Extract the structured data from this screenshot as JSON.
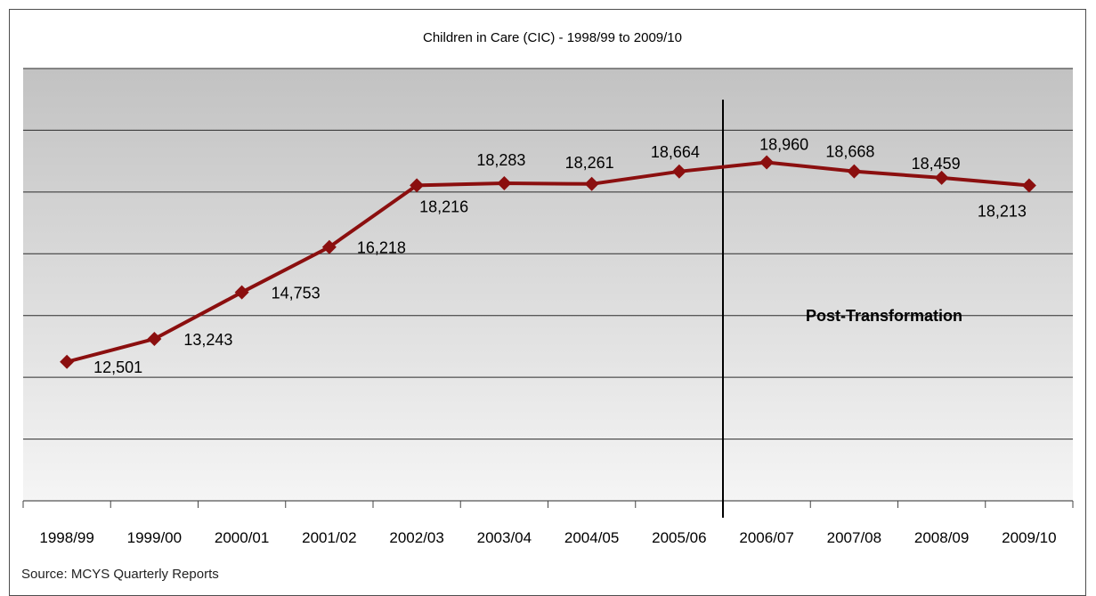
{
  "chart_data": {
    "type": "line",
    "title": "Children in Care (CIC) - 1998/99 to 2009/10",
    "categories": [
      "1998/99",
      "1999/00",
      "2000/01",
      "2001/02",
      "2002/03",
      "2003/04",
      "2004/05",
      "2005/06",
      "2006/07",
      "2007/08",
      "2008/09",
      "2009/10"
    ],
    "series": [
      {
        "values": [
          12501,
          13243,
          14753,
          16218,
          18216,
          18283,
          18261,
          18664,
          18960,
          18668,
          18459,
          18213
        ],
        "labels": [
          "12,501",
          "13,243",
          "14,753",
          "16,218",
          "18,216",
          "18,283",
          "18,261",
          "18,664",
          "18,960",
          "18,668",
          "18,459",
          "18,213"
        ],
        "color": "#8b0f0f"
      }
    ],
    "ylim": [
      8000,
      22000
    ],
    "grid": true,
    "annotation": {
      "text": "Post-Transformation",
      "at_category": "2006/07"
    },
    "colors": {
      "plot_top": "#c2c2c2",
      "plot_bottom": "#f5f5f5",
      "gridline": "#2b2b2b",
      "marker": "#8b0f0f"
    }
  },
  "source": "Source:   MCYS Quarterly Reports"
}
